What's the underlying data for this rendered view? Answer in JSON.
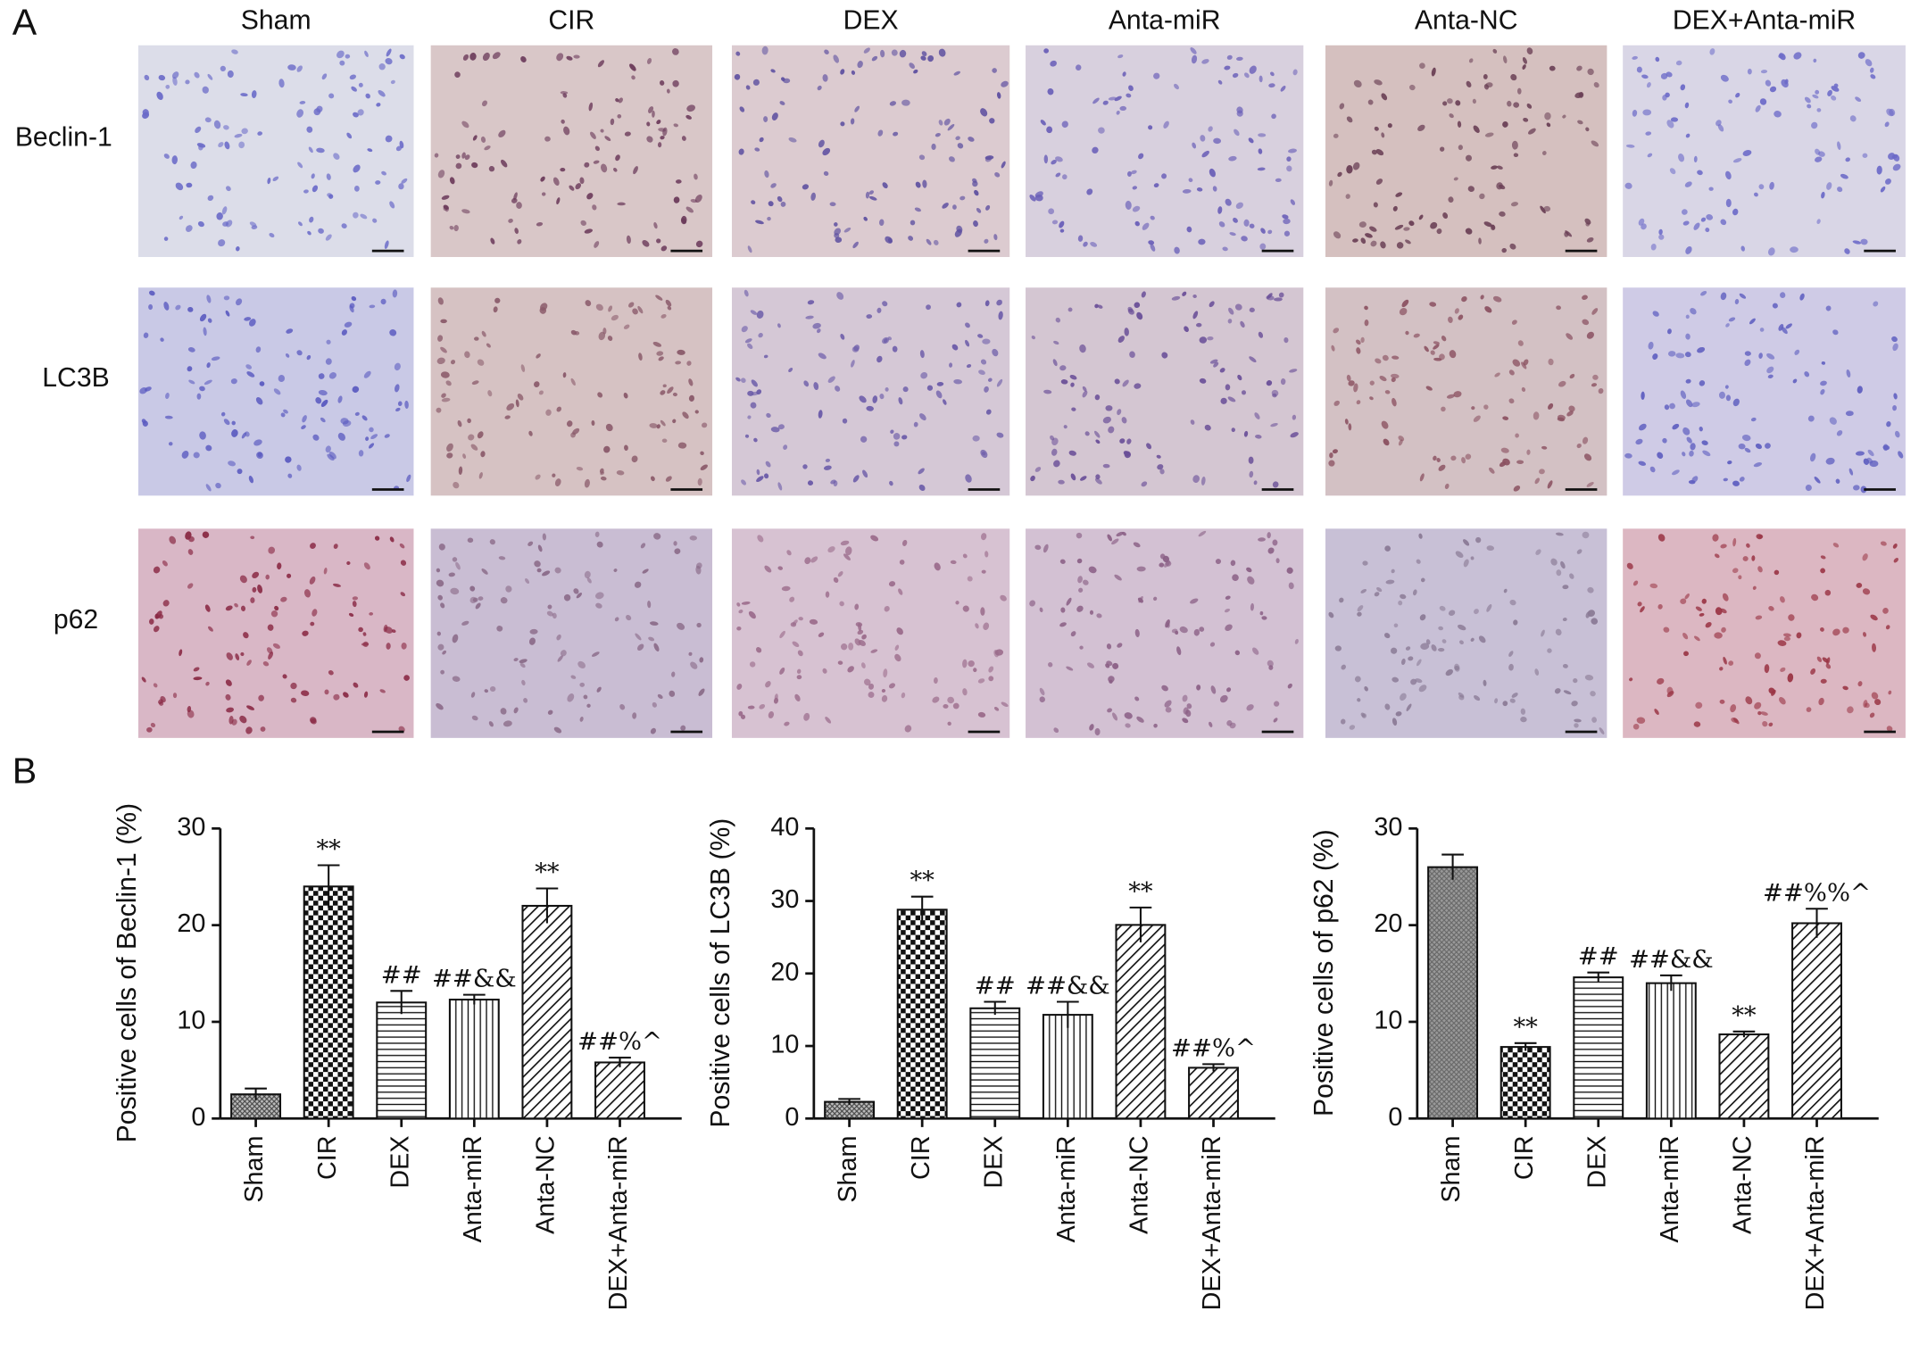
{
  "panel_labels": [
    "A",
    "B"
  ],
  "columns": [
    "Sham",
    "CIR",
    "DEX",
    "Anta-miR",
    "Anta-NC",
    "DEX+Anta-miR"
  ],
  "rows": [
    "Beclin-1",
    "LC3B",
    "p62"
  ],
  "chart_data": [
    {
      "type": "bar",
      "y_label": "Positive cells of Beclin-1 (%)",
      "categories": [
        "Sham",
        "CIR",
        "DEX",
        "Anta-miR",
        "Anta-NC",
        "DEX+Anta-miR"
      ],
      "values": [
        2.5,
        24,
        12,
        12.3,
        22,
        5.8
      ],
      "errors": [
        0.6,
        2.2,
        1.2,
        0.5,
        1.8,
        0.5
      ],
      "annotations": [
        null,
        "**",
        "##",
        "##&&",
        "**",
        "##%^"
      ],
      "patterns": [
        "crosshatch",
        "checker",
        "hlines",
        "vlines",
        "diag",
        "diag"
      ],
      "ylim": [
        0,
        30
      ],
      "yticks": [
        0,
        10,
        20,
        30
      ]
    },
    {
      "type": "bar",
      "y_label": "Positive cells of LC3B (%)",
      "categories": [
        "Sham",
        "CIR",
        "DEX",
        "Anta-miR",
        "Anta-NC",
        "DEX+Anta-miR"
      ],
      "values": [
        2.3,
        28.8,
        15.2,
        14.3,
        26.7,
        7
      ],
      "errors": [
        0.4,
        1.8,
        0.9,
        1.8,
        2.4,
        0.5
      ],
      "annotations": [
        null,
        "**",
        "##",
        "##&&",
        "**",
        "##%^"
      ],
      "patterns": [
        "crosshatch",
        "checker",
        "hlines",
        "vlines",
        "diag",
        "diag"
      ],
      "ylim": [
        0,
        40
      ],
      "yticks": [
        0,
        10,
        20,
        30,
        40
      ]
    },
    {
      "type": "bar",
      "y_label": "Positive cells of p62 (%)",
      "categories": [
        "Sham",
        "CIR",
        "DEX",
        "Anta-miR",
        "Anta-NC",
        "DEX+Anta-miR"
      ],
      "values": [
        26,
        7.4,
        14.6,
        14,
        8.7,
        20.2
      ],
      "errors": [
        1.3,
        0.4,
        0.5,
        0.8,
        0.3,
        1.5
      ],
      "annotations": [
        null,
        "**",
        "##",
        "##&&",
        "**",
        "##%%^"
      ],
      "patterns": [
        "graytex",
        "checker",
        "hlines",
        "vlines",
        "diag",
        "diag"
      ],
      "ylim": [
        0,
        30
      ],
      "yticks": [
        0,
        10,
        20,
        30
      ]
    }
  ]
}
